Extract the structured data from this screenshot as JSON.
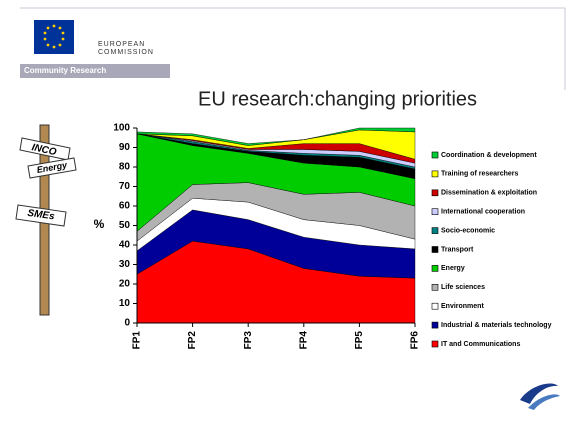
{
  "header": {
    "org_line1": "EUROPEAN",
    "org_line2": "COMMISSION",
    "band": "Community Research"
  },
  "signpost": [
    "INCO",
    "Energy",
    "SMEs"
  ],
  "chart_data": {
    "type": "stacked_area",
    "title": "EU research:changing priorities",
    "ylabel": "%",
    "categories": [
      "FP1",
      "FP2",
      "FP3",
      "FP4",
      "FP5",
      "FP6"
    ],
    "ylim": [
      0,
      100
    ],
    "yticks": [
      0,
      10,
      20,
      30,
      40,
      50,
      60,
      70,
      80,
      90,
      100
    ],
    "series": [
      {
        "name": "IT and Communications",
        "color": "#ff0000",
        "values": [
          25,
          42,
          38,
          28,
          24,
          23
        ]
      },
      {
        "name": "Industrial & materials technology",
        "color": "#000099",
        "values": [
          12,
          16,
          15,
          16,
          16,
          15
        ]
      },
      {
        "name": "Environment",
        "color": "#ffffff",
        "values": [
          5,
          6,
          9,
          9,
          10,
          5
        ]
      },
      {
        "name": "Life sciences",
        "color": "#b2b2b2",
        "values": [
          5,
          7,
          10,
          13,
          17,
          17
        ]
      },
      {
        "name": "Energy",
        "color": "#00cc00",
        "values": [
          50,
          20,
          15,
          16,
          13,
          14
        ]
      },
      {
        "name": "Transport",
        "color": "#000000",
        "values": [
          0,
          1,
          1,
          4,
          5,
          5
        ]
      },
      {
        "name": "Socio-economic",
        "color": "#008080",
        "values": [
          0,
          1,
          0.5,
          1,
          1,
          1
        ]
      },
      {
        "name": "International cooperation",
        "color": "#ccccff",
        "values": [
          0,
          0.5,
          0.5,
          2,
          2,
          2
        ]
      },
      {
        "name": "Dissemination & exploitation",
        "color": "#cc0000",
        "values": [
          0,
          0.5,
          0.5,
          3,
          4,
          2
        ]
      },
      {
        "name": "Training of researchers",
        "color": "#ffff00",
        "values": [
          0,
          2,
          1.5,
          2,
          7,
          14
        ]
      },
      {
        "name": "Coordination & development",
        "color": "#00cc33",
        "values": [
          1,
          1,
          1,
          0,
          1,
          2
        ]
      }
    ]
  }
}
